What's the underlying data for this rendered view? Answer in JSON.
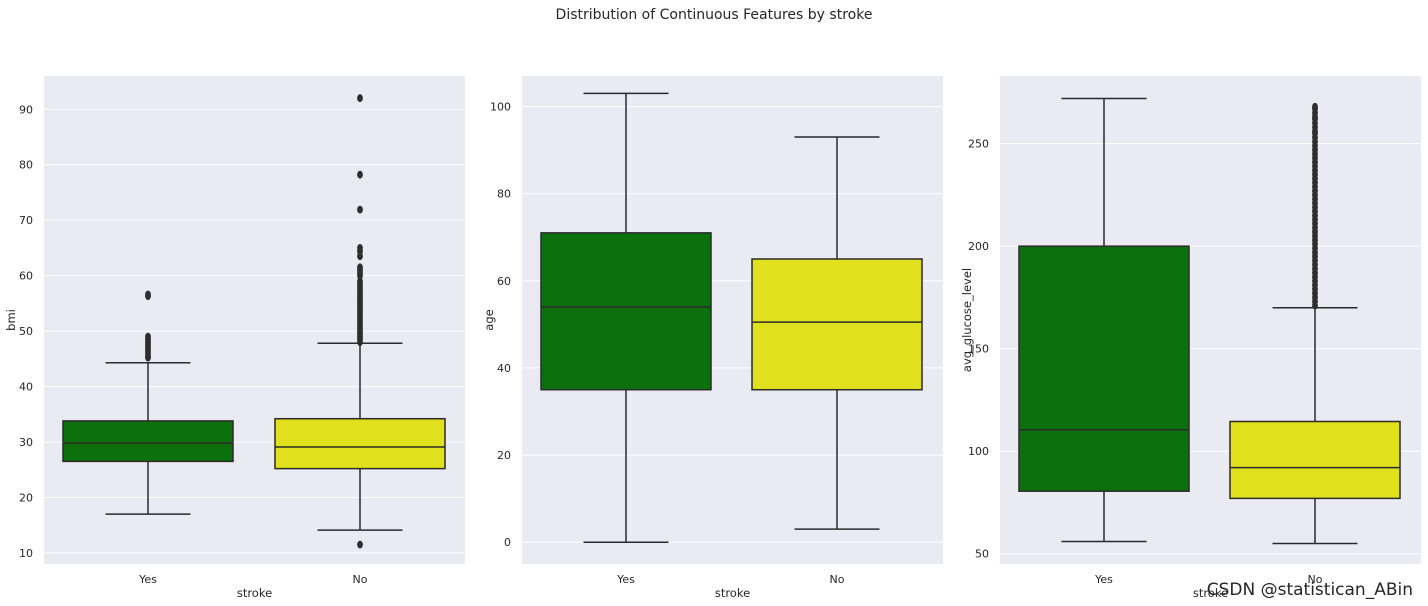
{
  "figure": {
    "title": "Distribution of Continuous Features by stroke",
    "watermark": "CSDN @statistican_ABin"
  },
  "colors": {
    "background": "#eaeaf2",
    "grid": "#ffffff",
    "line": "#2b2b2b",
    "yes": "#0c700c",
    "no": "#e0e01c"
  },
  "chart_data": [
    {
      "type": "box",
      "xlabel": "stroke",
      "ylabel": "bmi",
      "categories": [
        "Yes",
        "No"
      ],
      "ylim": [
        8,
        96
      ],
      "yticks": [
        10,
        20,
        30,
        40,
        50,
        60,
        70,
        80,
        90
      ],
      "grid": true,
      "boxes": [
        {
          "category": "Yes",
          "whisker_low": 17,
          "q1": 26.5,
          "median": 29.8,
          "q3": 33.8,
          "whisker_high": 44.3,
          "outliers": [
            45.2,
            45.5,
            46,
            46.5,
            47,
            47.5,
            48,
            48.5,
            49,
            56.3,
            56.6
          ]
        },
        {
          "category": "No",
          "whisker_low": 14.1,
          "q1": 25.2,
          "median": 29.1,
          "q3": 34.2,
          "whisker_high": 47.8,
          "outliers": [
            11.5,
            48,
            48.5,
            49,
            49.5,
            50,
            50.5,
            51,
            51.5,
            52,
            52.5,
            53,
            53.5,
            54,
            54.5,
            55,
            55.5,
            56,
            56.5,
            57,
            57.5,
            58,
            58.5,
            59,
            60,
            60.5,
            61,
            61.5,
            63.5,
            64.4,
            65,
            71.9,
            78.2,
            92
          ]
        }
      ]
    },
    {
      "type": "box",
      "xlabel": "stroke",
      "ylabel": "age",
      "categories": [
        "Yes",
        "No"
      ],
      "ylim": [
        -5,
        107
      ],
      "yticks": [
        0,
        20,
        40,
        60,
        80,
        100
      ],
      "grid": true,
      "boxes": [
        {
          "category": "Yes",
          "whisker_low": 0,
          "q1": 35,
          "median": 54,
          "q3": 71,
          "whisker_high": 103,
          "outliers": []
        },
        {
          "category": "No",
          "whisker_low": 3,
          "q1": 35,
          "median": 50.5,
          "q3": 65,
          "whisker_high": 93,
          "outliers": []
        }
      ]
    },
    {
      "type": "box",
      "xlabel": "stroke",
      "ylabel": "avg_glucose_level",
      "categories": [
        "Yes",
        "No"
      ],
      "ylim": [
        45,
        283
      ],
      "yticks": [
        50,
        100,
        150,
        200,
        250
      ],
      "grid": true,
      "boxes": [
        {
          "category": "Yes",
          "whisker_low": 56,
          "q1": 80.5,
          "median": 110.5,
          "q3": 200,
          "whisker_high": 272,
          "outliers": []
        },
        {
          "category": "No",
          "whisker_low": 55,
          "q1": 77,
          "median": 92,
          "q3": 114.5,
          "whisker_high": 170,
          "outliers": [
            171,
            173,
            175,
            177,
            179,
            181,
            183,
            185,
            187,
            189,
            191,
            193,
            195,
            197,
            199,
            201,
            203,
            205,
            207,
            209,
            211,
            213,
            215,
            217,
            219,
            221,
            223,
            225,
            227,
            229,
            231,
            233,
            235,
            237,
            239,
            241,
            243,
            245,
            247,
            249,
            251,
            253,
            255,
            256,
            258,
            260,
            262,
            263,
            265,
            267,
            268
          ]
        }
      ]
    }
  ]
}
